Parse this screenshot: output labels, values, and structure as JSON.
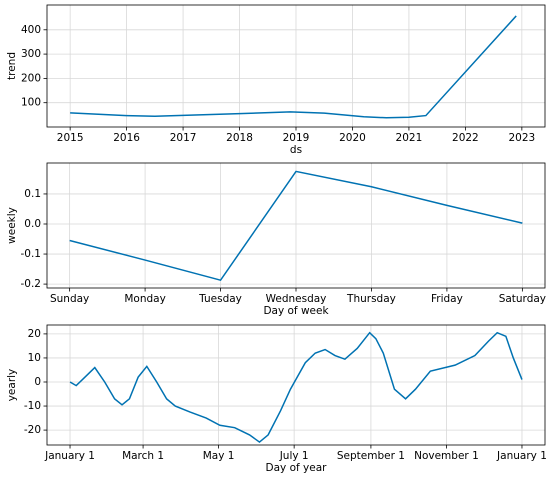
{
  "chart_data": [
    {
      "type": "line",
      "y_label": "trend",
      "x_label": "ds",
      "x": [
        2015.0,
        2016.0,
        2016.5,
        2017.0,
        2018.0,
        2018.9,
        2019.5,
        2020.2,
        2020.6,
        2021.0,
        2021.3,
        2022.9
      ],
      "series": [
        {
          "name": "trend",
          "color": "#0072b2",
          "values": [
            58,
            47,
            44,
            48,
            55,
            62,
            57,
            42,
            38,
            40,
            47,
            457
          ]
        }
      ],
      "xlim": [
        2014.59,
        2023.41
      ],
      "ylim": [
        0,
        502
      ],
      "xticks": [
        2015,
        2016,
        2017,
        2018,
        2019,
        2020,
        2021,
        2022,
        2023
      ],
      "yticks": [
        100,
        200,
        300,
        400
      ],
      "grid": true
    },
    {
      "type": "line",
      "y_label": "weekly",
      "x_label": "Day of week",
      "categories": [
        "Sunday",
        "Monday",
        "Tuesday",
        "Wednesday",
        "Thursday",
        "Friday",
        "Saturday"
      ],
      "series": [
        {
          "name": "weekly",
          "color": "#0072b2",
          "values": [
            -0.055,
            -0.12,
            -0.187,
            0.175,
            0.124,
            0.062,
            0.003
          ]
        }
      ],
      "ylim": [
        -0.213,
        0.203
      ],
      "yticks": [
        -0.2,
        -0.1,
        {
          "value": 0,
          "label": "0.0"
        },
        0.1
      ],
      "grid": true
    },
    {
      "type": "line",
      "y_label": "yearly",
      "x_label": "Day of year",
      "x": [
        0,
        5,
        12,
        20,
        28,
        36,
        42,
        48,
        55,
        62,
        70,
        78,
        85,
        97,
        110,
        121,
        133,
        145,
        153,
        160,
        170,
        178,
        190,
        198,
        206,
        214,
        222,
        232,
        242,
        247,
        253,
        262,
        271,
        279,
        291,
        311,
        327,
        338,
        345,
        352,
        358,
        365
      ],
      "series": [
        {
          "name": "yearly",
          "color": "#0072b2",
          "values": [
            0,
            -1.5,
            2,
            6,
            0,
            -7,
            -9.5,
            -7,
            2,
            6.5,
            0,
            -7,
            -10,
            -12.5,
            -15,
            -18,
            -19,
            -22,
            -25,
            -22,
            -12,
            -3,
            8,
            12,
            13.5,
            11,
            9.5,
            14,
            20.5,
            18,
            12,
            -3,
            -7,
            -3,
            4.5,
            7,
            11,
            17,
            20.5,
            19,
            10,
            1
          ]
        }
      ],
      "xlim": [
        -18.6,
        383.6
      ],
      "ylim": [
        -26.2,
        23.7
      ],
      "xticks": [
        {
          "value": 0,
          "label": "January 1"
        },
        {
          "value": 59,
          "label": "March 1"
        },
        {
          "value": 120,
          "label": "May 1"
        },
        {
          "value": 181,
          "label": "July 1"
        },
        {
          "value": 243,
          "label": "September 1"
        },
        {
          "value": 304,
          "label": "November 1"
        },
        {
          "value": 365,
          "label": "January 1"
        }
      ],
      "yticks": [
        -20,
        -10,
        0,
        10,
        20
      ],
      "grid": true
    }
  ]
}
